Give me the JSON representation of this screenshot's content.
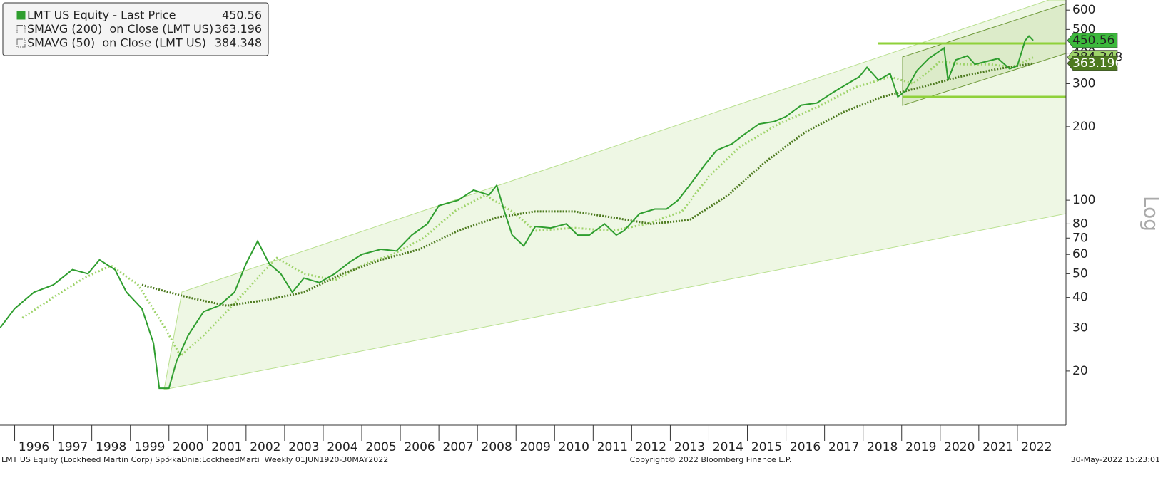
{
  "chart_data": {
    "type": "line",
    "log_scale": true,
    "xlim": [
      1995.62,
      2023.26
    ],
    "xticks": [
      1996,
      1997,
      1998,
      1999,
      2000,
      2001,
      2002,
      2003,
      2004,
      2005,
      2006,
      2007,
      2008,
      2009,
      2010,
      2011,
      2012,
      2013,
      2014,
      2015,
      2016,
      2017,
      2018,
      2019,
      2020,
      2021,
      2022
    ],
    "ylim": [
      12,
      660
    ],
    "yticks": [
      20,
      30,
      40,
      50,
      60,
      70,
      80,
      100,
      200,
      300,
      400,
      500,
      600
    ],
    "y_axis_label": "Log",
    "series": [
      {
        "name": "LMT US Equity - Last Price",
        "color": "#2f9e2f",
        "x": [
          1995.62,
          1996.0,
          1996.5,
          1997.0,
          1997.5,
          1997.9,
          1998.2,
          1998.6,
          1998.9,
          1999.3,
          1999.6,
          1999.75,
          2000.0,
          2000.2,
          2000.5,
          2000.9,
          2001.3,
          2001.7,
          2002.0,
          2002.3,
          2002.6,
          2002.9,
          2003.2,
          2003.5,
          2003.9,
          2004.3,
          2004.7,
          2005.0,
          2005.5,
          2005.9,
          2006.3,
          2006.7,
          2007.0,
          2007.5,
          2007.9,
          2008.3,
          2008.5,
          2008.7,
          2008.9,
          2009.2,
          2009.5,
          2009.9,
          2010.3,
          2010.6,
          2010.9,
          2011.3,
          2011.6,
          2011.8,
          2012.2,
          2012.6,
          2012.9,
          2013.2,
          2013.5,
          2013.9,
          2014.2,
          2014.6,
          2014.9,
          2015.3,
          2015.7,
          2016.0,
          2016.4,
          2016.8,
          2017.2,
          2017.6,
          2017.9,
          2018.1,
          2018.4,
          2018.7,
          2018.9,
          2019.1,
          2019.4,
          2019.7,
          2020.1,
          2020.2,
          2020.4,
          2020.7,
          2020.9,
          2021.2,
          2021.5,
          2021.8,
          2022.0,
          2022.2,
          2022.3,
          2022.41
        ],
        "values": [
          30,
          36,
          42,
          45,
          52,
          50,
          57,
          52,
          42,
          36,
          26,
          17,
          17,
          22,
          28,
          35,
          37,
          42,
          55,
          68,
          55,
          50,
          42,
          48,
          46,
          50,
          56,
          60,
          63,
          62,
          72,
          80,
          95,
          100,
          110,
          105,
          115,
          90,
          72,
          65,
          78,
          77,
          80,
          72,
          72,
          80,
          72,
          75,
          88,
          92,
          92,
          100,
          115,
          140,
          160,
          170,
          185,
          205,
          210,
          220,
          245,
          250,
          275,
          300,
          320,
          350,
          310,
          330,
          265,
          280,
          340,
          380,
          420,
          310,
          375,
          390,
          360,
          370,
          380,
          345,
          355,
          450,
          470,
          450.56
        ]
      },
      {
        "name": "SMAVG (200)  on Close (LMT US)",
        "color": "#4d7a1f",
        "x": [
          1999.3,
          2000.5,
          2001.5,
          2002.5,
          2003.5,
          2004.5,
          2005.5,
          2006.5,
          2007.5,
          2008.5,
          2009.5,
          2010.5,
          2011.5,
          2012.5,
          2013.5,
          2014.5,
          2015.5,
          2016.5,
          2017.5,
          2018.5,
          2019.5,
          2020.5,
          2021.5,
          2022.41
        ],
        "values": [
          45,
          40,
          37,
          39,
          42,
          50,
          57,
          63,
          75,
          85,
          90,
          90,
          85,
          80,
          83,
          105,
          145,
          190,
          230,
          265,
          290,
          320,
          345,
          363.196
        ]
      },
      {
        "name": "SMAVG (50)  on Close (LMT US)",
        "color": "#9ed36a",
        "x": [
          1996.2,
          1997.0,
          1997.8,
          1998.5,
          1999.2,
          1999.9,
          2000.3,
          2000.9,
          2001.5,
          2002.3,
          2002.8,
          2003.5,
          2004.3,
          2005.1,
          2005.8,
          2006.6,
          2007.4,
          2008.2,
          2008.9,
          2009.5,
          2010.5,
          2011.5,
          2012.4,
          2013.3,
          2014.0,
          2014.8,
          2015.8,
          2016.8,
          2017.8,
          2018.7,
          2019.3,
          2020.0,
          2020.6,
          2021.3,
          2021.9,
          2022.41
        ],
        "values": [
          33,
          40,
          48,
          54,
          45,
          30,
          23,
          28,
          35,
          48,
          58,
          50,
          47,
          55,
          60,
          70,
          90,
          105,
          90,
          75,
          77,
          75,
          80,
          90,
          125,
          165,
          205,
          240,
          290,
          320,
          300,
          370,
          360,
          360,
          350,
          384.348
        ]
      }
    ],
    "footer_left": "LMT US Equity (Lockheed Martin Corp) SpółkaDnia:LockheedMarti  Weekly 01JUN1920-30MAY2022",
    "footer_center": "Copyright© 2022 Bloomberg Finance L.P.",
    "footer_right": "30-May-2022 15:23:01"
  }
}
